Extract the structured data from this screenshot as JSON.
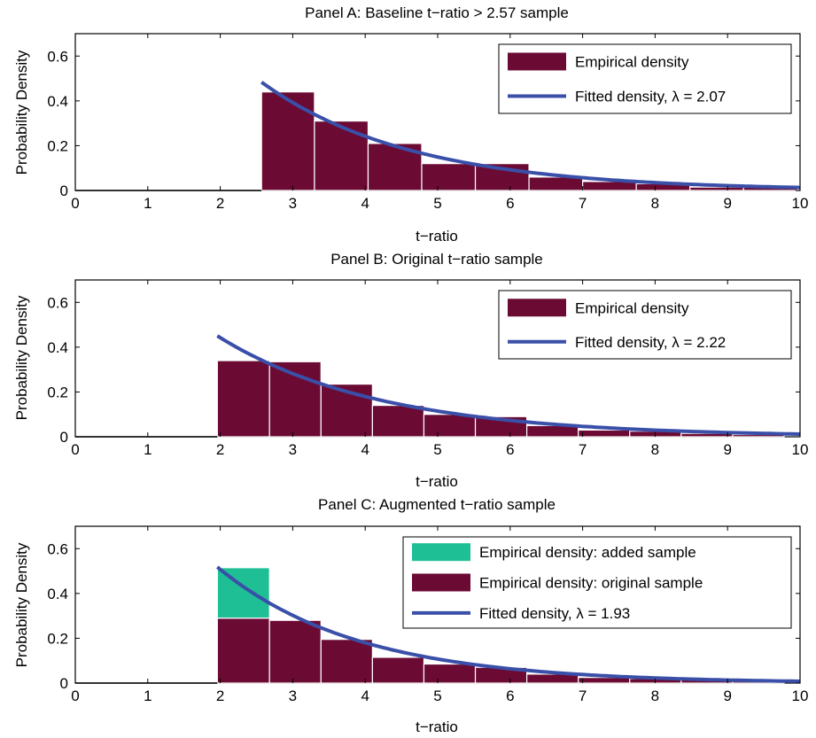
{
  "colors": {
    "bar": "#6b0a33",
    "bar_edge": "#ffffff",
    "added": "#1fbf95",
    "curve": "#3a4fa8",
    "axis": "#000000"
  },
  "chart_data": [
    {
      "type": "bar",
      "title": "Panel A: Baseline t−ratio > 2.57 sample",
      "xlabel": "t−ratio",
      "ylabel": "Probability Density",
      "xlim": [
        0,
        10
      ],
      "ylim": [
        0,
        0.7
      ],
      "xticks": [
        "0",
        "1",
        "2",
        "3",
        "4",
        "5",
        "6",
        "7",
        "8",
        "9",
        "10"
      ],
      "yticks": [
        "0",
        "0.2",
        "0.4",
        "0.6"
      ],
      "grid": false,
      "legend_position": "top-right",
      "bin_edges": [
        2.57,
        3.3,
        4.04,
        4.78,
        5.52,
        6.26,
        7.0,
        7.74,
        8.48,
        9.22,
        9.96
      ],
      "series": [
        {
          "name": "Empirical density",
          "kind": "bars",
          "values": [
            0.44,
            0.31,
            0.21,
            0.12,
            0.12,
            0.06,
            0.04,
            0.03,
            0.015,
            0.015
          ]
        },
        {
          "name": "Fitted density, λ = 2.07",
          "kind": "curve",
          "lambda": 2.07,
          "x_start": 2.57,
          "x_end": 10
        }
      ]
    },
    {
      "type": "bar",
      "title": "Panel B: Original t−ratio sample",
      "xlabel": "t−ratio",
      "ylabel": "Probability Density",
      "xlim": [
        0,
        10
      ],
      "ylim": [
        0,
        0.7
      ],
      "xticks": [
        "0",
        "1",
        "2",
        "3",
        "4",
        "5",
        "6",
        "7",
        "8",
        "9",
        "10"
      ],
      "yticks": [
        "0",
        "0.2",
        "0.4",
        "0.6"
      ],
      "grid": false,
      "legend_position": "top-right",
      "bin_edges": [
        1.96,
        2.68,
        3.39,
        4.1,
        4.81,
        5.52,
        6.23,
        6.94,
        7.65,
        8.36,
        9.07,
        9.78
      ],
      "series": [
        {
          "name": "Empirical density",
          "kind": "bars",
          "values": [
            0.34,
            0.335,
            0.235,
            0.14,
            0.1,
            0.09,
            0.05,
            0.03,
            0.025,
            0.015,
            0.01
          ]
        },
        {
          "name": "Fitted density, λ = 2.22",
          "kind": "curve",
          "lambda": 2.22,
          "x_start": 1.96,
          "x_end": 10
        }
      ]
    },
    {
      "type": "bar",
      "title": "Panel C: Augmented t−ratio sample",
      "xlabel": "t−ratio",
      "ylabel": "Probability Density",
      "xlim": [
        0,
        10
      ],
      "ylim": [
        0,
        0.7
      ],
      "xticks": [
        "0",
        "1",
        "2",
        "3",
        "4",
        "5",
        "6",
        "7",
        "8",
        "9",
        "10"
      ],
      "yticks": [
        "0",
        "0.2",
        "0.4",
        "0.6"
      ],
      "grid": false,
      "legend_position": "top-right",
      "bin_edges": [
        1.96,
        2.68,
        3.39,
        4.1,
        4.81,
        5.52,
        6.23,
        6.94,
        7.65,
        8.36,
        9.07,
        9.78
      ],
      "series": [
        {
          "name": "Empirical density: added sample",
          "kind": "stacked_bars",
          "values": [
            0.225,
            0,
            0,
            0,
            0,
            0,
            0,
            0,
            0,
            0,
            0
          ]
        },
        {
          "name": "Empirical density: original sample",
          "kind": "bars",
          "values": [
            0.29,
            0.28,
            0.195,
            0.115,
            0.085,
            0.07,
            0.04,
            0.025,
            0.02,
            0.015,
            0.008
          ]
        },
        {
          "name": "Fitted density, λ = 1.93",
          "kind": "curve",
          "lambda": 1.93,
          "x_start": 1.96,
          "x_end": 10
        }
      ]
    }
  ]
}
